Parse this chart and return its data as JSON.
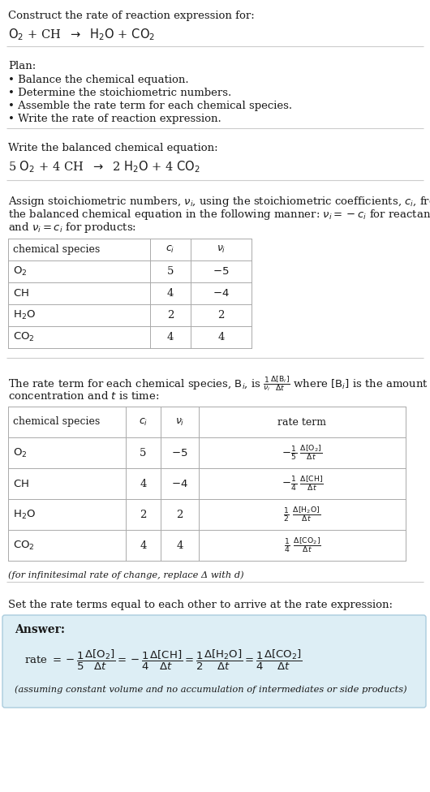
{
  "bg_color": "#ffffff",
  "text_color": "#1a1a1a",
  "answer_bg": "#ddeef5",
  "answer_border": "#aaccdd",
  "fs": 9.5,
  "fs_small": 8.2,
  "lc": "#aaaaaa",
  "sc": "#cccccc",
  "sections": {
    "title": "Construct the rate of reaction expression for:",
    "rxn_unbalanced": "O_2 + CH  →  H_2O + CO_2",
    "plan_header": "Plan:",
    "plan_items": [
      "• Balance the chemical equation.",
      "• Determine the stoichiometric numbers.",
      "• Assemble the rate term for each chemical species.",
      "• Write the rate of reaction expression."
    ],
    "balanced_header": "Write the balanced chemical equation:",
    "rxn_balanced": "5 O_2 + 4 CH  →  2 H_2O + 4 CO_2",
    "stoich_intro": [
      "Assign stoichiometric numbers, νi, using the stoichiometric coefficients, ci, from",
      "the balanced chemical equation in the following manner: νi = −ci for reactants",
      "and νi = ci for products:"
    ],
    "rate_intro_l1": "The rate term for each chemical species, Bi, is",
    "rate_intro_l2": "where [Bi] is the amount",
    "rate_intro_l3": "concentration and t is time:",
    "infinitesimal": "(for infinitesimal rate of change, replace Δ with d)",
    "set_equal": "Set the rate terms equal to each other to arrive at the rate expression:",
    "answer_label": "Answer:",
    "answer_note": "(assuming constant volume and no accumulation of intermediates or side products)"
  }
}
